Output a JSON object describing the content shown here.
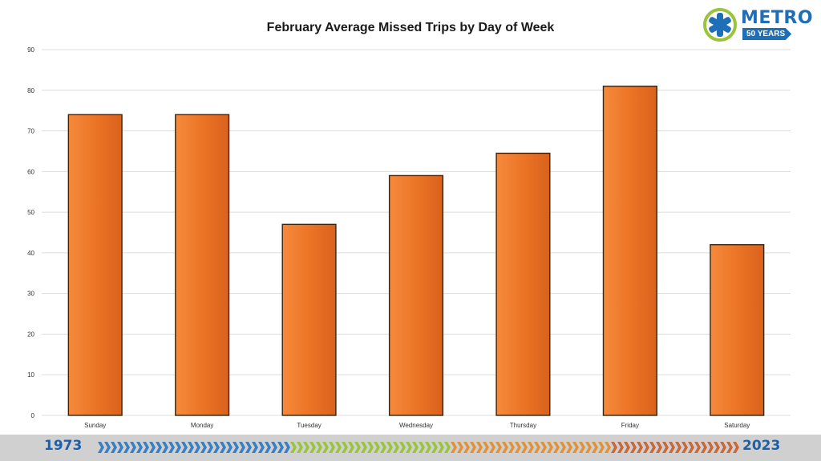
{
  "logo": {
    "word": "METRO",
    "badge": "50 YEARS"
  },
  "footer": {
    "start_year": "1973",
    "end_year": "2023"
  },
  "colors": {
    "bar": "#ec7426",
    "bar_edge": "#3a2410",
    "brand_blue": "#1f6fb8",
    "logo_green": "#9ac43b"
  },
  "chart_data": {
    "type": "bar",
    "title": "February Average Missed Trips by Day of Week",
    "categories": [
      "Sunday",
      "Monday",
      "Tuesday",
      "Wednesday",
      "Thursday",
      "Friday",
      "Saturday"
    ],
    "values": [
      74,
      74,
      47,
      59,
      64.5,
      81,
      42
    ],
    "ylim": [
      0,
      90
    ],
    "yticks": [
      "0",
      "10",
      "20",
      "30",
      "40",
      "50",
      "60",
      "70",
      "80",
      "90"
    ],
    "grid": true,
    "legend": "none"
  }
}
